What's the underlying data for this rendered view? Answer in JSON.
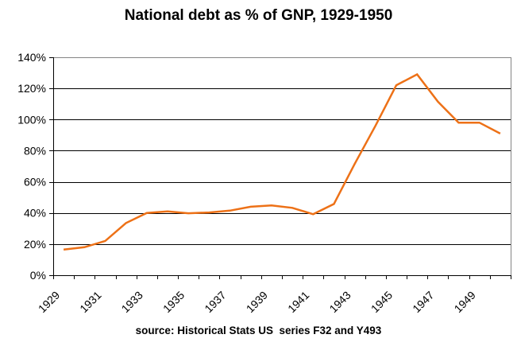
{
  "chart_data": {
    "type": "line",
    "title": "National debt as % of GNP, 1929-1950",
    "source": "source: Historical Stats US  series F32 and Y493",
    "x": [
      1929,
      1930,
      1931,
      1932,
      1933,
      1934,
      1935,
      1936,
      1937,
      1938,
      1939,
      1940,
      1941,
      1942,
      1943,
      1944,
      1945,
      1946,
      1947,
      1948,
      1949,
      1950
    ],
    "values": [
      16.5,
      18,
      22,
      33.5,
      40,
      41,
      39.8,
      40.3,
      41.5,
      44,
      44.8,
      43.3,
      39.2,
      45.8,
      71.5,
      96,
      122,
      129,
      111.5,
      98,
      98,
      91
    ],
    "x_tick_labels": [
      "1929",
      "1931",
      "1933",
      "1935",
      "1937",
      "1939",
      "1941",
      "1943",
      "1945",
      "1947",
      "1949"
    ],
    "y_ticks": [
      0,
      20,
      40,
      60,
      80,
      100,
      120,
      140
    ],
    "y_tick_suffix": "%",
    "ylim": [
      0,
      140
    ],
    "xlabel": "",
    "ylabel": "",
    "grid": "horizontal",
    "legend_position": "none"
  },
  "colors": {
    "line": "#ED7117",
    "gridline": "#000000",
    "axis": "#000000",
    "plot_border": "#848484",
    "text": "#000000",
    "background": "#FFFFFF"
  }
}
